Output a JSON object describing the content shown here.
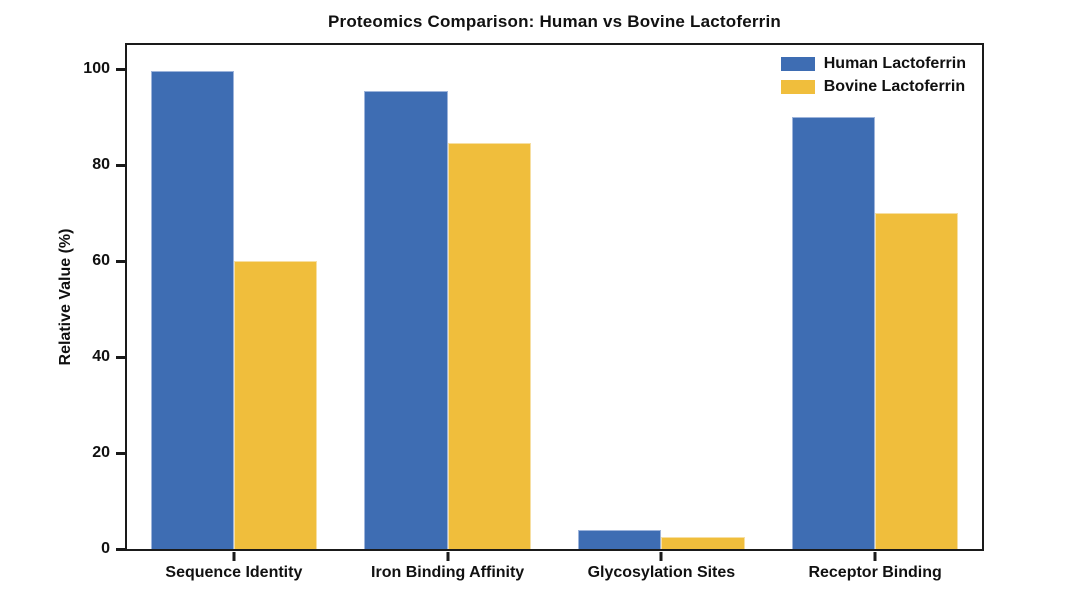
{
  "chart_data": {
    "type": "bar",
    "title": "Proteomics Comparison: Human vs Bovine Lactoferrin",
    "categories": [
      "Sequence Identity",
      "Iron Binding Affinity",
      "Glycosylation Sites",
      "Receptor Binding"
    ],
    "series": [
      {
        "name": "Human Lactoferrin",
        "color": "#3E6DB3",
        "edge_color": "#9DB4DB",
        "values": [
          99.5,
          95.5,
          4.0,
          90.0
        ]
      },
      {
        "name": "Bovine Lactoferrin",
        "color": "#F0BE3C",
        "edge_color": "#F7DFA2",
        "values": [
          60.0,
          84.5,
          2.4,
          70.0
        ]
      }
    ],
    "xlabel": "",
    "ylabel": "Relative Value (%)",
    "ylim": [
      0,
      105
    ],
    "yticks": [
      0,
      20,
      40,
      60,
      80,
      100
    ],
    "grid": false,
    "legend_position": "upper right",
    "spine_color": "#1a1a1a",
    "text_color": "#111111"
  }
}
